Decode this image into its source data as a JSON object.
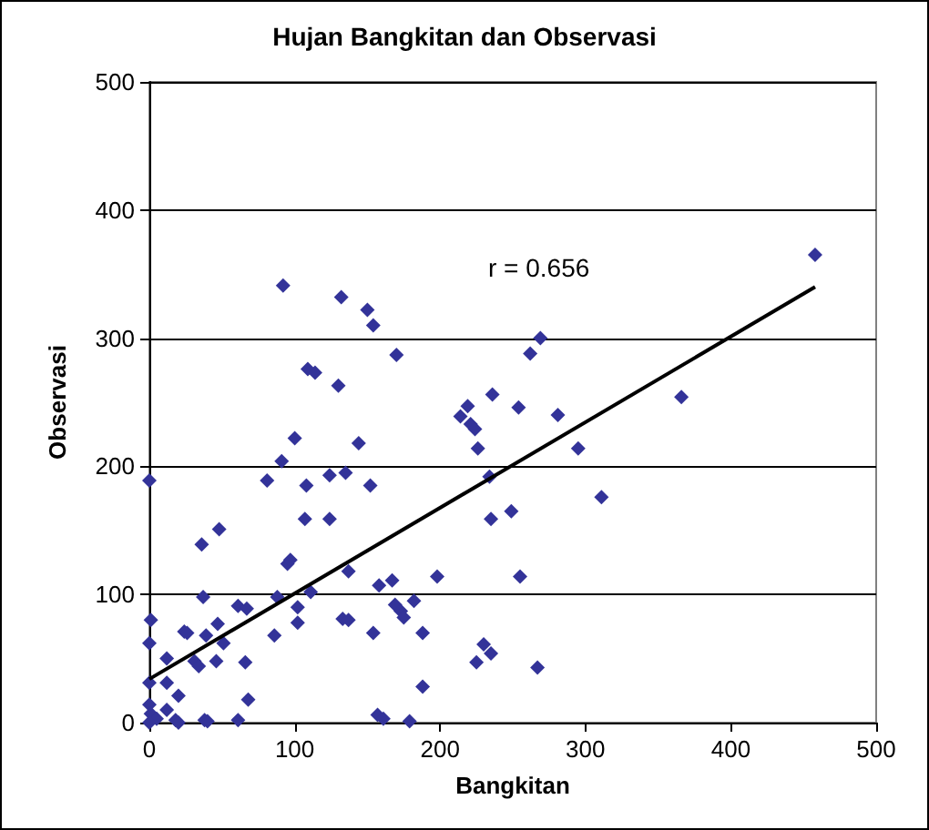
{
  "chart_data": {
    "type": "scatter",
    "title": "Hujan Bangkitan dan Observasi",
    "xlabel": "Bangkitan",
    "ylabel": "Observasi",
    "annotations": [
      "r = 0.656"
    ],
    "xlim": [
      0,
      500
    ],
    "xticks": [
      0,
      100,
      200,
      300,
      400,
      500
    ],
    "ylim": [
      0,
      500
    ],
    "yticks": [
      0,
      100,
      200,
      300,
      400,
      500
    ],
    "grid": "y",
    "marker": "diamond",
    "series": [
      {
        "color": "#333399",
        "x": [
          92,
          132,
          150,
          154,
          170,
          109,
          114,
          130,
          458,
          269,
          262,
          236,
          219,
          214,
          221,
          224,
          226,
          254,
          281,
          366,
          295,
          311,
          234,
          235,
          249,
          255,
          235,
          267,
          230,
          225,
          0,
          36,
          48,
          81,
          91,
          100,
          108,
          107,
          124,
          135,
          144,
          152,
          124,
          95,
          97,
          137,
          111,
          88,
          102,
          102,
          86,
          133,
          137,
          158,
          167,
          169,
          173,
          175,
          182,
          198,
          188,
          154,
          188,
          61,
          67,
          37,
          24,
          26,
          39,
          47,
          51,
          31,
          34,
          46,
          66,
          68,
          1,
          0,
          12,
          12,
          20,
          0,
          0,
          1,
          5,
          12,
          18,
          38,
          40,
          61,
          157,
          161,
          179,
          20,
          0
        ],
        "values": [
          341,
          332,
          322,
          310,
          287,
          276,
          273,
          263,
          365,
          300,
          288,
          256,
          247,
          239,
          233,
          229,
          214,
          246,
          240,
          254,
          214,
          176,
          192,
          159,
          165,
          114,
          54,
          43,
          61,
          47,
          189,
          139,
          151,
          189,
          204,
          222,
          185,
          159,
          193,
          195,
          218,
          185,
          159,
          124,
          127,
          118,
          102,
          98,
          90,
          78,
          68,
          81,
          80,
          107,
          111,
          92,
          87,
          82,
          95,
          114,
          70,
          70,
          28,
          91,
          89,
          98,
          71,
          70,
          68,
          77,
          62,
          48,
          44,
          48,
          47,
          18,
          80,
          62,
          50,
          31,
          21,
          31,
          14,
          7,
          3,
          10,
          2,
          2,
          1,
          2,
          6,
          3,
          1,
          0,
          0
        ]
      },
      {
        "type": "line",
        "color": "#000000",
        "marker": "none",
        "x": [
          0,
          458
        ],
        "values": [
          34,
          340
        ]
      }
    ]
  }
}
